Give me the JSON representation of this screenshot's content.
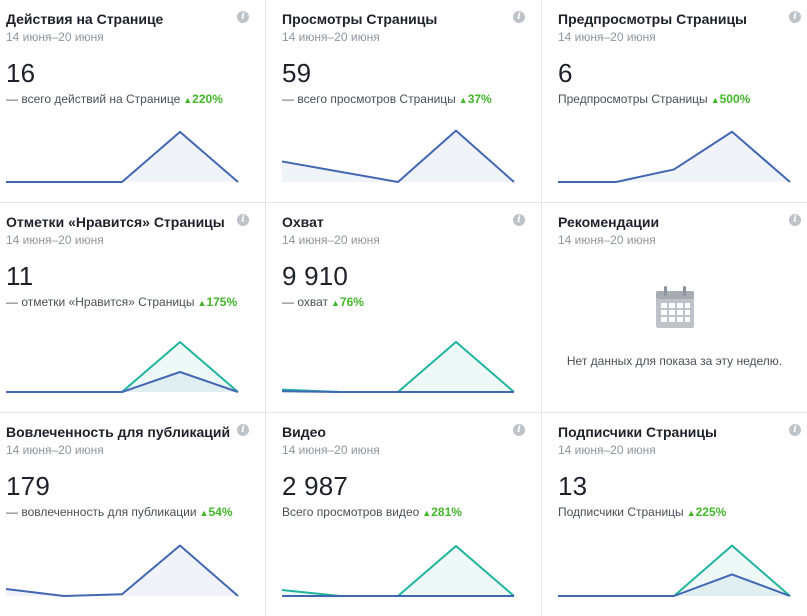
{
  "colors": {
    "blue": "#4267b2",
    "teal": "#20b49e",
    "up": "#42b72a"
  },
  "cards": [
    {
      "title": "Действия на Странице",
      "date": "14 июня–20 июня",
      "value": "16",
      "desc": "— всего действий на Странице",
      "trend": "220%",
      "series": [
        [
          0,
          0,
          0,
          6.5,
          0
        ]
      ],
      "seriesMax": 7
    },
    {
      "title": "Просмотры Страницы",
      "date": "14 июня–20 июня",
      "value": "59",
      "desc": "— всего просмотров Страницы",
      "trend": "37%",
      "series": [
        [
          4,
          2,
          0,
          10,
          0
        ]
      ],
      "seriesMax": 10.5
    },
    {
      "title": "Предпросмотры Страницы",
      "date": "14 июня–20 июня",
      "value": "6",
      "desc": "Предпросмотры Страницы",
      "trend": "500%",
      "series": [
        [
          0,
          0,
          1,
          4,
          0
        ]
      ],
      "seriesMax": 4.3
    },
    {
      "title": "Отметки «Нравится» Страницы",
      "date": "14 июня–20 июня",
      "value": "11",
      "desc": "— отметки «Нравится» Страницы",
      "trend": "175%",
      "series": [
        [
          0,
          0,
          0,
          2,
          0
        ],
        [
          0,
          0,
          0,
          5,
          0
        ]
      ],
      "seriesMax": 5.4
    },
    {
      "title": "Охват",
      "date": "14 июня–20 июня",
      "value": "9 910",
      "desc": "— охват",
      "trend": "76%",
      "series": [
        [
          0.1,
          0,
          0,
          0,
          0
        ],
        [
          0.3,
          0,
          0,
          6.5,
          0
        ]
      ],
      "seriesMax": 7
    },
    {
      "title": "Рекомендации",
      "date": "14 июня–20 июня",
      "nodata": "Нет данных для показа за эту неделю."
    },
    {
      "title": "Вовлеченность для публикаций",
      "date": "14 июня–20 июня",
      "value": "179",
      "desc": "— вовлеченность для публикации",
      "trend": "54%",
      "series": [
        [
          2,
          0,
          0.5,
          14.5,
          0
        ]
      ],
      "seriesMax": 15.5
    },
    {
      "title": "Видео",
      "date": "14 июня–20 июня",
      "value": "2 987",
      "desc": "Всего просмотров видео",
      "trend": "281%",
      "series": [
        [
          0,
          0,
          0,
          0,
          0
        ],
        [
          1.5,
          0,
          0,
          12.5,
          0
        ]
      ],
      "seriesMax": 13.5
    },
    {
      "title": "Подписчики Страницы",
      "date": "14 июня–20 июня",
      "value": "13",
      "desc": "Подписчики Страницы",
      "trend": "225%",
      "series": [
        [
          0,
          0,
          0,
          3,
          0
        ],
        [
          0,
          0,
          0,
          7,
          0
        ]
      ],
      "seriesMax": 7.5
    }
  ]
}
